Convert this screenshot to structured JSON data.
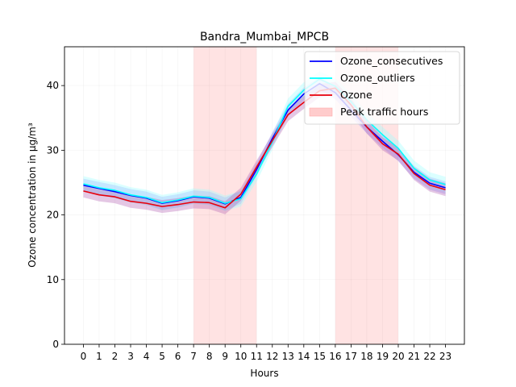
{
  "chart_data": {
    "type": "line",
    "title": "Bandra_Mumbai_MPCB",
    "xlabel": "Hours",
    "ylabel": "Ozone concentration in µg/m³",
    "x": [
      0,
      1,
      2,
      3,
      4,
      5,
      6,
      7,
      8,
      9,
      10,
      11,
      12,
      13,
      14,
      15,
      16,
      17,
      18,
      19,
      20,
      21,
      22,
      23
    ],
    "xlim": [
      -1.2,
      24.2
    ],
    "ylim": [
      0,
      46
    ],
    "yticks": [
      0,
      10,
      20,
      30,
      40
    ],
    "grid": true,
    "legend_position": "top-right",
    "peak_traffic_hours": [
      [
        7,
        11
      ],
      [
        16,
        20
      ]
    ],
    "series": [
      {
        "name": "Ozone_consecutives",
        "color": "#0000ff",
        "band_color": "#9999ff",
        "values": [
          24.6,
          24.1,
          23.6,
          23.0,
          22.6,
          21.8,
          22.2,
          22.8,
          22.6,
          21.7,
          22.7,
          27.0,
          31.8,
          36.2,
          38.7,
          40.3,
          38.9,
          36.2,
          33.6,
          31.4,
          29.3,
          26.6,
          24.9,
          24.2
        ],
        "band_halfwidth": 1.0
      },
      {
        "name": "Ozone_outliers",
        "color": "#00ffff",
        "band_color": "#99ffff",
        "values": [
          24.8,
          24.2,
          23.8,
          23.1,
          22.7,
          21.9,
          22.3,
          22.9,
          22.7,
          21.8,
          22.5,
          26.3,
          31.3,
          36.8,
          39.3,
          41.0,
          39.9,
          37.5,
          34.7,
          32.4,
          30.3,
          27.2,
          25.4,
          24.7
        ],
        "band_halfwidth": 1.2
      },
      {
        "name": "Ozone",
        "color": "#e8000b",
        "band_color": "#b35fb3",
        "values": [
          23.7,
          23.1,
          22.8,
          22.1,
          21.8,
          21.3,
          21.6,
          22.0,
          21.9,
          21.1,
          23.2,
          27.4,
          31.5,
          35.5,
          37.4,
          39.2,
          39.6,
          37.0,
          33.6,
          31.0,
          29.4,
          26.4,
          24.6,
          23.9
        ],
        "band_halfwidth": 1.0
      }
    ],
    "legend": [
      {
        "label": "Ozone_consecutives",
        "kind": "line",
        "color": "#0000ff"
      },
      {
        "label": "Ozone_outliers",
        "kind": "line",
        "color": "#00ffff"
      },
      {
        "label": "Ozone",
        "kind": "line",
        "color": "#e8000b"
      },
      {
        "label": "Peak traffic hours",
        "kind": "patch",
        "color": "#ffcccc"
      }
    ]
  }
}
